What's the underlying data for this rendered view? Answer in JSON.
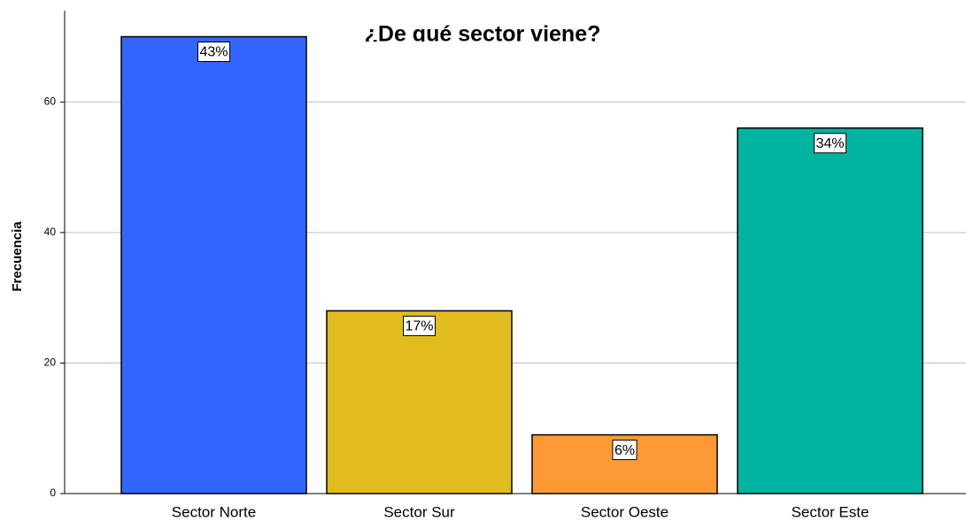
{
  "chart_data": {
    "type": "bar",
    "title": "¿De qué sector viene?",
    "ylabel": "Frecuencia",
    "categories": [
      "Sector Norte",
      "Sector Sur",
      "Sector Oeste",
      "Sector Este"
    ],
    "values": [
      70,
      28,
      9,
      56
    ],
    "percent_labels": [
      "43%",
      "17%",
      "6%",
      "34%"
    ],
    "colors": [
      "#3366ff",
      "#e1bc1f",
      "#fe9a35",
      "#00b4a0"
    ],
    "ylim": [
      0,
      74
    ],
    "yticks": [
      0,
      20,
      40,
      60
    ],
    "grid": true
  }
}
